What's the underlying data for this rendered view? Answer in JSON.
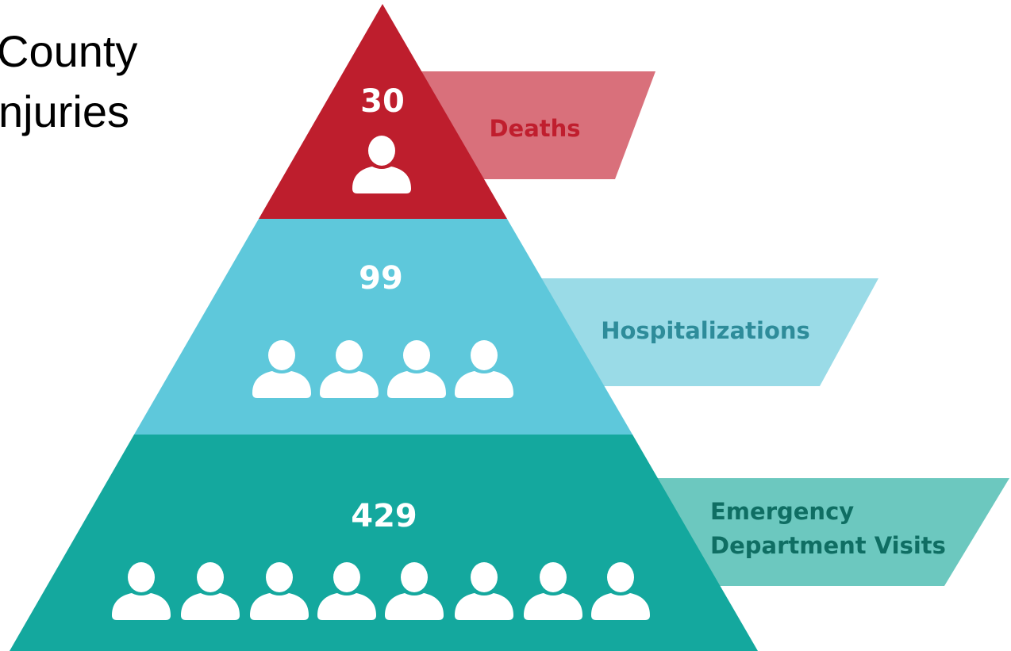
{
  "title": {
    "lines": [
      "County",
      "njuries"
    ]
  },
  "levels": [
    {
      "count": 30,
      "label": [
        "Deaths"
      ]
    },
    {
      "count": 99,
      "label": [
        "Hospitalizations"
      ]
    },
    {
      "count": 429,
      "label": [
        "Emergency",
        "Department Visits"
      ]
    }
  ]
}
